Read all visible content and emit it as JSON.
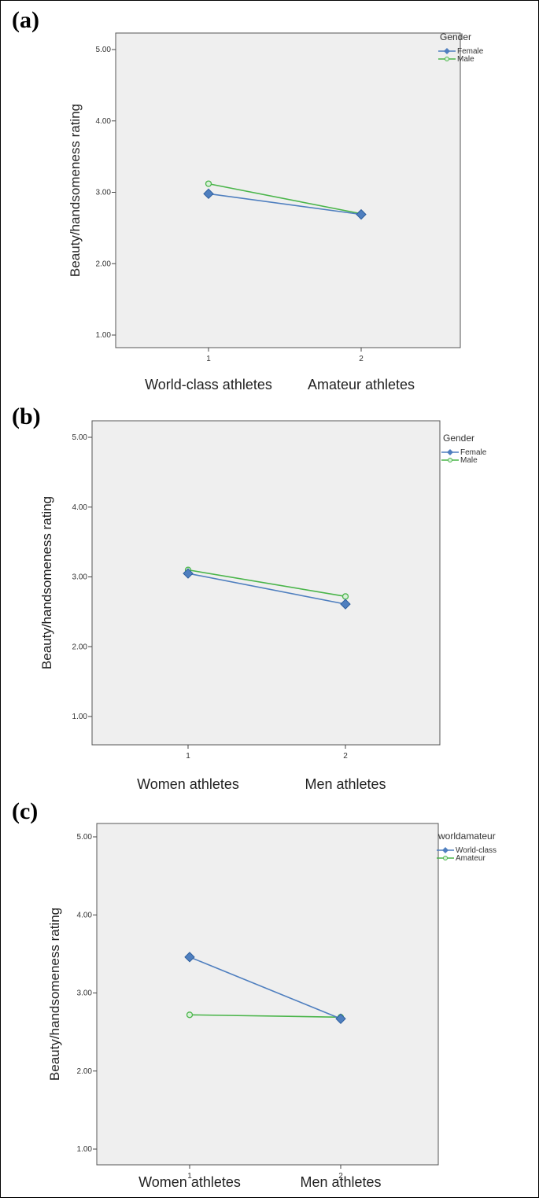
{
  "colors": {
    "series1": "#4f7fbf",
    "series2": "#4ab54a",
    "plot_bg": "#efefef"
  },
  "chart_data": [
    {
      "panel": "(a)",
      "type": "line",
      "x": [
        "1",
        "2"
      ],
      "x_category_labels": [
        "World-class athletes",
        "Amateur athletes"
      ],
      "ylabel": "Beauty/handsomeness rating",
      "ylim": [
        1.0,
        5.0
      ],
      "yticks": [
        "1.00",
        "2.00",
        "3.00",
        "4.00",
        "5.00"
      ],
      "legend_title": "Gender",
      "legend_position": "top-right",
      "series": [
        {
          "name": "Female",
          "marker": "diamond",
          "values": [
            2.98,
            2.69
          ]
        },
        {
          "name": "Male",
          "marker": "circle",
          "values": [
            3.12,
            2.7
          ]
        }
      ]
    },
    {
      "panel": "(b)",
      "type": "line",
      "x": [
        "1",
        "2"
      ],
      "x_category_labels": [
        "Women athletes",
        "Men athletes"
      ],
      "ylabel": "Beauty/handsomeness rating",
      "ylim": [
        1.0,
        5.0
      ],
      "yticks": [
        "1.00",
        "2.00",
        "3.00",
        "4.00",
        "5.00"
      ],
      "legend_title": "Gender",
      "legend_position": "top-right",
      "series": [
        {
          "name": "Female",
          "marker": "diamond",
          "values": [
            3.05,
            2.61
          ]
        },
        {
          "name": "Male",
          "marker": "circle",
          "values": [
            3.1,
            2.72
          ]
        }
      ]
    },
    {
      "panel": "(c)",
      "type": "line",
      "x": [
        "1",
        "2"
      ],
      "x_category_labels": [
        "Women athletes",
        "Men athletes"
      ],
      "ylabel": "Beauty/handsomeness rating",
      "ylim": [
        1.0,
        5.0
      ],
      "yticks": [
        "1.00",
        "2.00",
        "3.00",
        "4.00",
        "5.00"
      ],
      "legend_title": "worldamateur",
      "legend_position": "top-right",
      "series": [
        {
          "name": "World-class",
          "marker": "diamond",
          "values": [
            3.46,
            2.67
          ]
        },
        {
          "name": "Amateur",
          "marker": "circle",
          "values": [
            2.72,
            2.69
          ]
        }
      ]
    }
  ]
}
